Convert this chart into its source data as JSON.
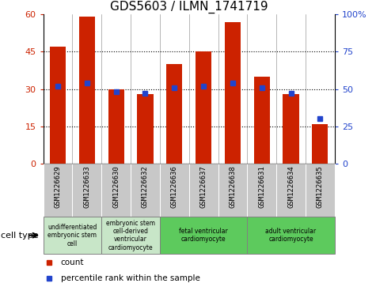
{
  "title": "GDS5603 / ILMN_1741719",
  "samples": [
    "GSM1226629",
    "GSM1226633",
    "GSM1226630",
    "GSM1226632",
    "GSM1226636",
    "GSM1226637",
    "GSM1226638",
    "GSM1226631",
    "GSM1226634",
    "GSM1226635"
  ],
  "counts": [
    47,
    59,
    30,
    28,
    40,
    45,
    57,
    35,
    28,
    16
  ],
  "percentiles": [
    52,
    54,
    48,
    47,
    51,
    52,
    54,
    51,
    47,
    30
  ],
  "ylim_left": [
    0,
    60
  ],
  "ylim_right": [
    0,
    100
  ],
  "yticks_left": [
    0,
    15,
    30,
    45,
    60
  ],
  "yticks_right": [
    0,
    25,
    50,
    75,
    100
  ],
  "ytick_labels_right": [
    "0",
    "25",
    "50",
    "75",
    "100%"
  ],
  "bar_color": "#cc2200",
  "dot_color": "#2244cc",
  "grid_color": "#000000",
  "cell_type_groups": [
    {
      "label": "undifferentiated\nembryonic stem\ncell",
      "start": 0,
      "end": 2,
      "color": "#c8e6c8"
    },
    {
      "label": "embryonic stem\ncell-derived\nventricular\ncardiomyocyte",
      "start": 2,
      "end": 4,
      "color": "#c8e6c8"
    },
    {
      "label": "fetal ventricular\ncardiomyocyte",
      "start": 4,
      "end": 7,
      "color": "#5dca5d"
    },
    {
      "label": "adult ventricular\ncardiomyocyte",
      "start": 7,
      "end": 10,
      "color": "#5dca5d"
    }
  ],
  "legend_count_label": "count",
  "legend_percentile_label": "percentile rank within the sample",
  "cell_type_label": "cell type",
  "tick_bg_color": "#c8c8c8",
  "sample_label_fontsize": 6.5,
  "axis_label_fontsize": 8,
  "title_fontsize": 11
}
